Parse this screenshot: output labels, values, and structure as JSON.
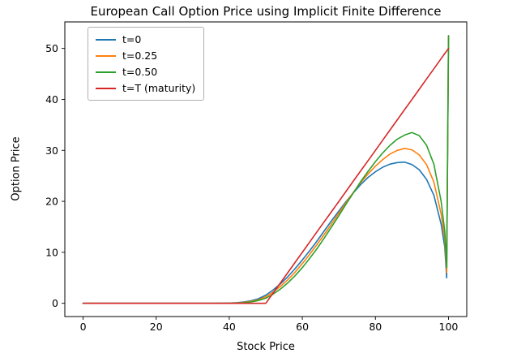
{
  "chart_data": {
    "type": "line",
    "title": "European Call Option Price using Implicit Finite Difference",
    "xlabel": "Stock Price",
    "ylabel": "Option Price",
    "xlim": [
      -5,
      105
    ],
    "ylim": [
      -2.6,
      55.2
    ],
    "xticks": [
      0,
      20,
      40,
      60,
      80,
      100
    ],
    "yticks": [
      0,
      10,
      20,
      30,
      40,
      50
    ],
    "grid": false,
    "legend_position": "upper-left",
    "x": [
      0,
      5,
      10,
      15,
      20,
      25,
      30,
      35,
      40,
      42,
      44,
      46,
      48,
      50,
      52,
      54,
      56,
      58,
      60,
      62,
      64,
      66,
      68,
      70,
      72,
      74,
      76,
      78,
      80,
      82,
      84,
      86,
      88,
      90,
      92,
      94,
      96,
      98,
      99,
      99.5,
      100
    ],
    "series": [
      {
        "name": "t=0",
        "color": "#1f77b4",
        "values": [
          0,
          0,
          0,
          0,
          0,
          0,
          0,
          0,
          0.05,
          0.12,
          0.25,
          0.5,
          0.9,
          1.6,
          2.6,
          3.8,
          5.2,
          6.8,
          8.5,
          10.3,
          12.2,
          14.2,
          16.2,
          18.1,
          20.0,
          21.7,
          23.3,
          24.7,
          25.8,
          26.7,
          27.3,
          27.6,
          27.7,
          27.2,
          26.2,
          24.3,
          21.2,
          15.5,
          11.0,
          5.0,
          52.5
        ]
      },
      {
        "name": "t=0.25",
        "color": "#ff7f0e",
        "values": [
          0,
          0,
          0,
          0,
          0,
          0,
          0,
          0,
          0.03,
          0.08,
          0.18,
          0.38,
          0.7,
          1.3,
          2.2,
          3.3,
          4.6,
          6.1,
          7.8,
          9.6,
          11.5,
          13.5,
          15.6,
          17.7,
          19.8,
          21.8,
          23.7,
          25.4,
          26.9,
          28.2,
          29.3,
          30.0,
          30.4,
          30.1,
          29.1,
          27.2,
          23.8,
          17.5,
          12.5,
          6.0,
          52.5
        ]
      },
      {
        "name": "t=0.50",
        "color": "#2ca02c",
        "values": [
          0,
          0,
          0,
          0,
          0,
          0,
          0,
          0,
          0.02,
          0.05,
          0.12,
          0.27,
          0.55,
          1.0,
          1.8,
          2.8,
          4.0,
          5.4,
          7.0,
          8.8,
          10.7,
          12.8,
          15.0,
          17.2,
          19.5,
          21.7,
          23.9,
          25.9,
          27.8,
          29.5,
          31.0,
          32.2,
          33.0,
          33.5,
          32.9,
          31.0,
          27.3,
          20.0,
          14.0,
          7.0,
          52.5
        ]
      },
      {
        "name": "t=T (maturity)",
        "color": "#d62728",
        "values": [
          0,
          0,
          0,
          0,
          0,
          0,
          0,
          0,
          0,
          0,
          0,
          0,
          0,
          0,
          2,
          4,
          6,
          8,
          10,
          12,
          14,
          16,
          18,
          20,
          22,
          24,
          26,
          28,
          30,
          32,
          34,
          36,
          38,
          40,
          42,
          44,
          46,
          48,
          49,
          49.5,
          50
        ]
      }
    ]
  }
}
